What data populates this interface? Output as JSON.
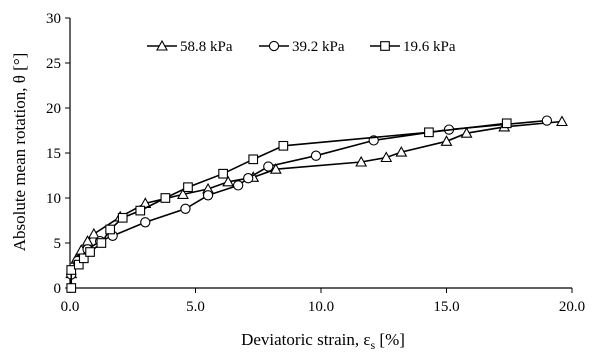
{
  "chart_data": {
    "type": "line",
    "title": "",
    "xlabel": "Deviatoric strain, ε",
    "xlabel_sub": "s",
    "xlabel_unit": " [%]",
    "ylabel": "Absolute mean rotation, θ [°]",
    "xlim": [
      0,
      20
    ],
    "ylim": [
      0,
      30
    ],
    "x_ticks": [
      0,
      5,
      10,
      15,
      20
    ],
    "x_tick_labels": [
      "0.0",
      "5.0",
      "10.0",
      "15.0",
      "20.0"
    ],
    "y_ticks": [
      0,
      5,
      10,
      15,
      20,
      25,
      30
    ],
    "y_tick_labels": [
      "0",
      "5",
      "10",
      "15",
      "20",
      "25",
      "30"
    ],
    "grid": false,
    "legend_position": "top",
    "series": [
      {
        "name": "58.8 kPa",
        "marker": "triangle",
        "points": [
          [
            0.05,
            1.6
          ],
          [
            0.25,
            3.2
          ],
          [
            0.45,
            4.2
          ],
          [
            0.7,
            5.2
          ],
          [
            0.95,
            6.0
          ],
          [
            2.0,
            7.9
          ],
          [
            3.0,
            9.4
          ],
          [
            4.5,
            10.4
          ],
          [
            5.5,
            11.0
          ],
          [
            6.3,
            11.8
          ],
          [
            7.3,
            12.3
          ],
          [
            8.2,
            13.2
          ],
          [
            11.6,
            14.0
          ],
          [
            12.6,
            14.5
          ],
          [
            13.2,
            15.1
          ],
          [
            15.0,
            16.3
          ],
          [
            15.8,
            17.2
          ],
          [
            17.3,
            17.9
          ],
          [
            19.6,
            18.5
          ]
        ],
        "color": "#000000"
      },
      {
        "name": "39.2 kPa",
        "marker": "circle",
        "points": [
          [
            0.05,
            1.5
          ],
          [
            0.3,
            3.0
          ],
          [
            0.7,
            4.3
          ],
          [
            1.2,
            5.2
          ],
          [
            1.7,
            5.8
          ],
          [
            3.0,
            7.3
          ],
          [
            4.6,
            8.8
          ],
          [
            5.5,
            10.3
          ],
          [
            6.7,
            11.4
          ],
          [
            7.1,
            12.2
          ],
          [
            7.9,
            13.5
          ],
          [
            9.8,
            14.7
          ],
          [
            12.1,
            16.4
          ],
          [
            15.1,
            17.6
          ],
          [
            19.0,
            18.6
          ]
        ],
        "color": "#000000"
      },
      {
        "name": "19.6 kPa",
        "marker": "square",
        "points": [
          [
            0.05,
            0.0
          ],
          [
            0.05,
            2.0
          ],
          [
            0.35,
            2.6
          ],
          [
            0.55,
            3.3
          ],
          [
            0.8,
            4.0
          ],
          [
            1.25,
            5.0
          ],
          [
            1.6,
            6.5
          ],
          [
            2.1,
            7.8
          ],
          [
            2.8,
            8.6
          ],
          [
            3.8,
            10.0
          ],
          [
            4.7,
            11.2
          ],
          [
            6.1,
            12.7
          ],
          [
            7.3,
            14.3
          ],
          [
            8.5,
            15.8
          ],
          [
            14.3,
            17.3
          ],
          [
            17.4,
            18.3
          ]
        ],
        "color": "#000000"
      }
    ]
  }
}
